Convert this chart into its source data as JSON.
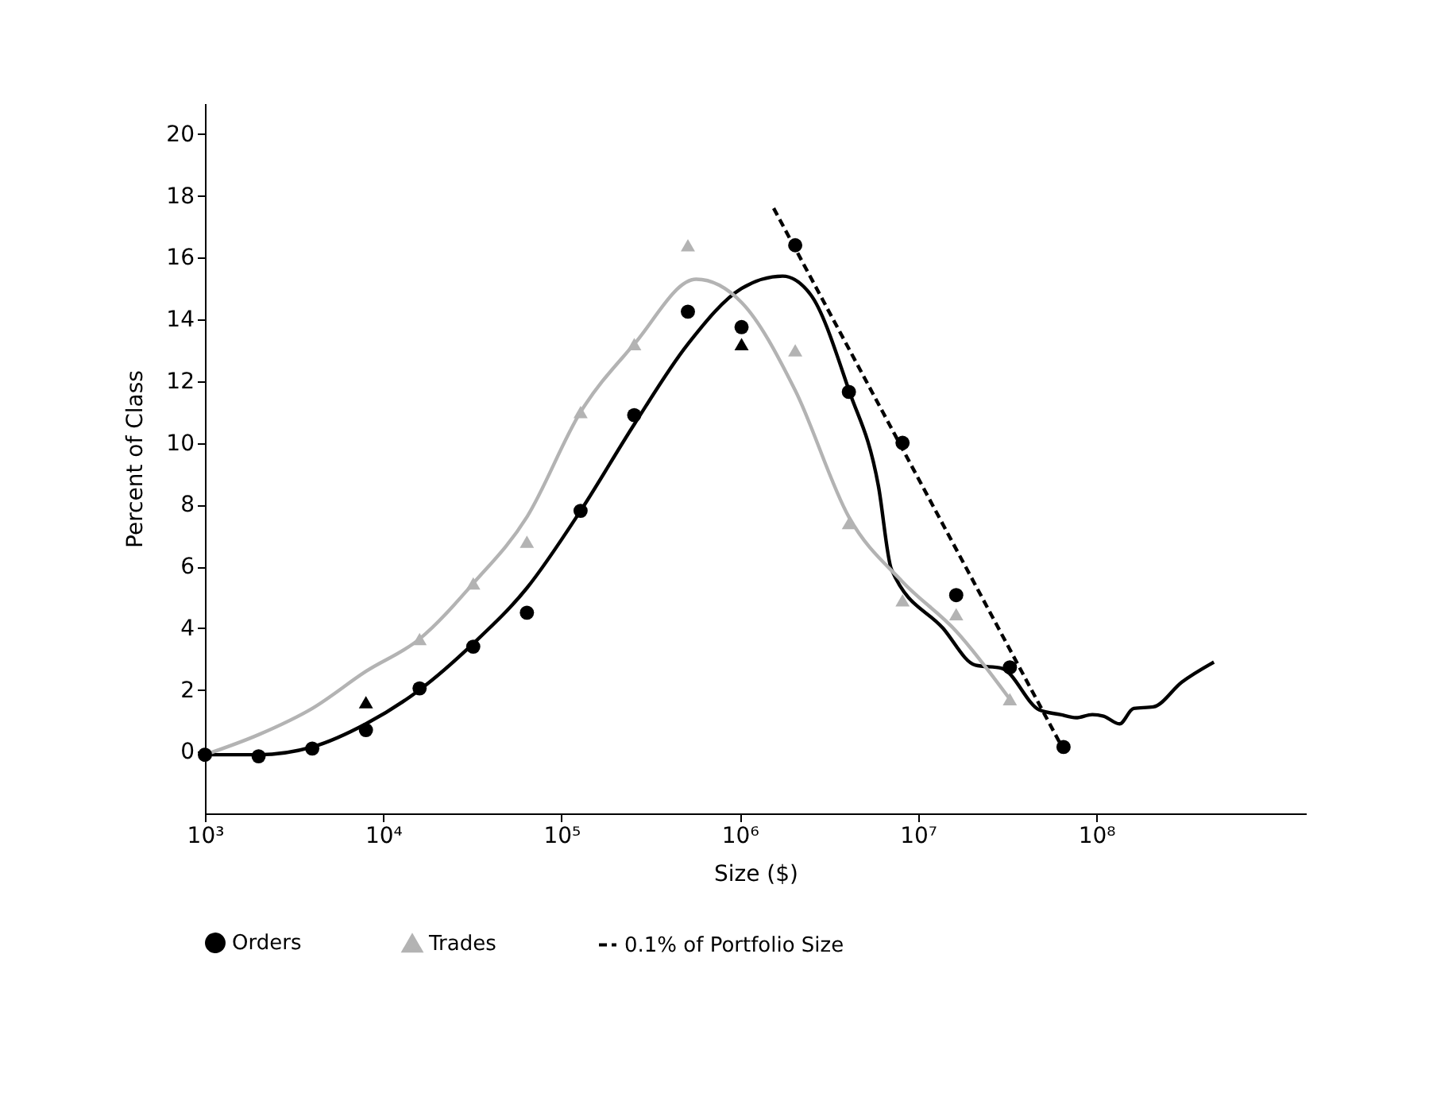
{
  "chart_data": {
    "type": "scatter",
    "xlabel": "Size ($)",
    "ylabel": "Percent of Class",
    "log": "x",
    "xlim": [
      1000,
      1500000000
    ],
    "ylim": [
      -2,
      21
    ],
    "xticks": [
      {
        "value": 1000,
        "label": "10³"
      },
      {
        "value": 10000,
        "label": "10⁴"
      },
      {
        "value": 100000,
        "label": "10⁵"
      },
      {
        "value": 1000000,
        "label": "10⁶"
      },
      {
        "value": 10000000,
        "label": "10⁷"
      },
      {
        "value": 100000000,
        "label": "10⁸"
      }
    ],
    "yticks": [
      0,
      2,
      4,
      6,
      8,
      10,
      12,
      14,
      16,
      18,
      20
    ],
    "grid": false,
    "legend": "bottom",
    "series": [
      {
        "name": "Orders",
        "marker": "circle",
        "color": "#000000",
        "x": [
          1000,
          2000,
          4000,
          8000,
          16000,
          32000,
          64000,
          128000,
          256000,
          512000,
          1024000,
          2048000,
          4096000,
          8192000,
          16384000,
          32768000,
          65536000
        ],
        "values": [
          -0.1,
          -0.15,
          0.1,
          0.7,
          2.05,
          3.4,
          4.5,
          7.8,
          10.9,
          14.25,
          13.75,
          16.4,
          11.65,
          10.0,
          5.07,
          2.73,
          0.15
        ]
      },
      {
        "name": "Trades",
        "marker": "triangle",
        "color": "#b3b3b3",
        "x": [
          16000,
          32000,
          64000,
          128000,
          256000,
          512000,
          2048000,
          4096000,
          8192000,
          16384000,
          32768000
        ],
        "values": [
          3.65,
          5.45,
          6.8,
          11.0,
          13.2,
          16.4,
          13.0,
          7.4,
          4.9,
          4.45,
          1.7
        ]
      },
      {
        "marker": "triangle",
        "color": "#000000",
        "x": [
          8000,
          1024000
        ],
        "values": [
          1.6,
          13.2
        ]
      },
      {
        "type": "line",
        "marker": "none",
        "line_style": "solid",
        "color": "#000000",
        "x": [
          1000,
          2000,
          4000,
          8000,
          16000,
          32000,
          64000,
          128000,
          256000,
          512000,
          1024000,
          1740000,
          2500000,
          4100000,
          6000000,
          7100000,
          13800000,
          21000000,
          29500000,
          48000000,
          63000000,
          77000000,
          95000000,
          110000000,
          135000000,
          162000000,
          209000000,
          302000000,
          457000000
        ],
        "values": [
          -0.1,
          -0.1,
          0.15,
          0.9,
          2.0,
          3.5,
          5.3,
          7.8,
          10.6,
          13.2,
          15.0,
          15.4,
          14.8,
          11.7,
          8.6,
          5.9,
          4.0,
          2.8,
          2.7,
          1.35,
          1.2,
          1.1,
          1.2,
          1.15,
          0.9,
          1.4,
          1.45,
          2.25,
          2.9
        ]
      },
      {
        "type": "line",
        "marker": "none",
        "line_style": "solid",
        "color": "#b3b3b3",
        "x": [
          1000,
          2000,
          4000,
          8000,
          16000,
          32000,
          64000,
          128000,
          256000,
          570000,
          1024000,
          2048000,
          4096000,
          8192000,
          16384000,
          32768000
        ],
        "values": [
          -0.1,
          0.55,
          1.4,
          2.6,
          3.65,
          5.45,
          7.6,
          11.0,
          13.2,
          15.3,
          14.55,
          11.7,
          7.6,
          5.5,
          3.9,
          1.7
        ]
      },
      {
        "name": "0.1% of Portfolio Size",
        "type": "line",
        "marker": "none",
        "line_style": "dashed",
        "color": "#000000",
        "x": [
          1550000,
          65000000
        ],
        "values": [
          17.6,
          0.1
        ]
      }
    ]
  }
}
